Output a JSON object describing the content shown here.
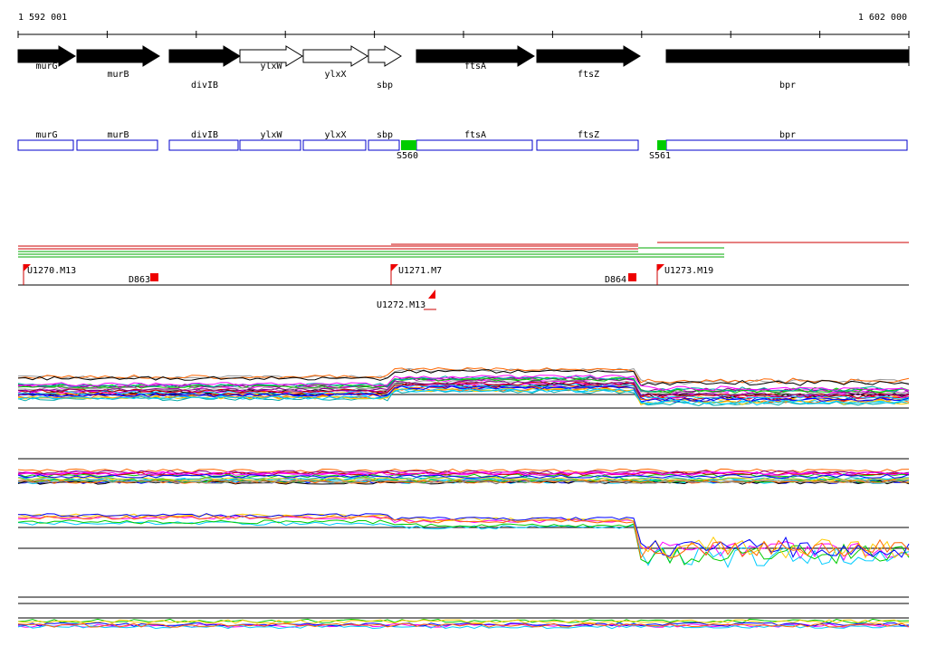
{
  "coordinates": {
    "start": "1 592 001",
    "end": "1 602 000"
  },
  "genes": [
    {
      "label": "murG",
      "filled": true
    },
    {
      "label": "murB",
      "filled": true
    },
    {
      "label": "divIB",
      "filled": true
    },
    {
      "label": "ylxW",
      "filled": false
    },
    {
      "label": "ylxX",
      "filled": false
    },
    {
      "label": "sbp",
      "filled": false
    },
    {
      "label": "ftsA",
      "filled": true
    },
    {
      "label": "ftsZ",
      "filled": true
    },
    {
      "label": "bpr",
      "filled": true
    }
  ],
  "sites": [
    "S560",
    "S561"
  ],
  "features": [
    "U1270.M13",
    "D863",
    "U1271.M7",
    "D864",
    "U1273.M19",
    "U1272.M13"
  ]
}
